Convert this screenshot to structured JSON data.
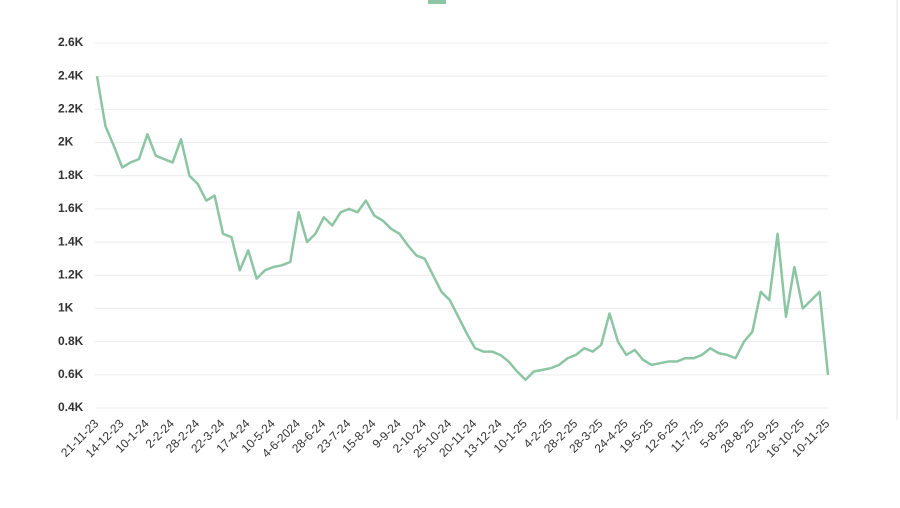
{
  "chart_data": {
    "type": "line",
    "categories": [
      "21-11-23",
      null,
      null,
      "14-12-23",
      null,
      null,
      "10-1-24",
      null,
      null,
      "2-2-24",
      null,
      null,
      "28-2-24",
      null,
      null,
      "22-3-24",
      null,
      null,
      "17-4-24",
      null,
      null,
      "10-5-24",
      null,
      null,
      "4-6-2024",
      null,
      null,
      "28-6-24",
      null,
      null,
      "23-7-24",
      null,
      null,
      "15-8-24",
      null,
      null,
      "9-9-24",
      null,
      null,
      "2-10-24",
      null,
      null,
      "25-10-24",
      null,
      null,
      "20-11-24",
      null,
      null,
      "13-12-24",
      null,
      null,
      "10-1-25",
      null,
      null,
      "4-2-25",
      null,
      null,
      "28-2-25",
      null,
      null,
      "28-3-25",
      null,
      null,
      "24-4-25",
      null,
      null,
      "19-5-25",
      null,
      null,
      "12-6-25",
      null,
      null,
      "11-7-25",
      null,
      null,
      "5-8-25",
      null,
      null,
      "28-8-25",
      null,
      null,
      "22-9-25",
      null,
      null,
      "16-10-25",
      null,
      null,
      "10-11-25"
    ],
    "series": [
      {
        "color": "#8cc5a3",
        "values": [
          2400,
          2100,
          1980,
          1850,
          1880,
          1900,
          2050,
          1920,
          1900,
          1880,
          2020,
          1800,
          1750,
          1650,
          1680,
          1450,
          1430,
          1230,
          1350,
          1180,
          1230,
          1250,
          1260,
          1280,
          1580,
          1400,
          1450,
          1550,
          1500,
          1580,
          1600,
          1580,
          1650,
          1560,
          1530,
          1480,
          1450,
          1380,
          1320,
          1300,
          1200,
          1100,
          1050,
          950,
          850,
          760,
          740,
          740,
          720,
          680,
          620,
          570,
          620,
          630,
          640,
          660,
          700,
          720,
          760,
          740,
          780,
          970,
          800,
          720,
          750,
          690,
          660,
          670,
          680,
          680,
          700,
          700,
          720,
          760,
          730,
          720,
          700,
          800,
          860,
          1100,
          1050,
          1450,
          950,
          1250,
          1000,
          1050,
          1100,
          600
        ]
      }
    ],
    "ylim": [
      400,
      2600
    ],
    "yticks": [
      {
        "value": 400,
        "label": "0.4K"
      },
      {
        "value": 600,
        "label": "0.6K"
      },
      {
        "value": 800,
        "label": "0.8K"
      },
      {
        "value": 1000,
        "label": "1K"
      },
      {
        "value": 1200,
        "label": "1.2K"
      },
      {
        "value": 1400,
        "label": "1.4K"
      },
      {
        "value": 1600,
        "label": "1.6K"
      },
      {
        "value": 1800,
        "label": "1.8K"
      },
      {
        "value": 2000,
        "label": "2K"
      },
      {
        "value": 2200,
        "label": "2.2K"
      },
      {
        "value": 2400,
        "label": "2.4K"
      },
      {
        "value": 2600,
        "label": "2.6K"
      }
    ],
    "grid": true
  }
}
